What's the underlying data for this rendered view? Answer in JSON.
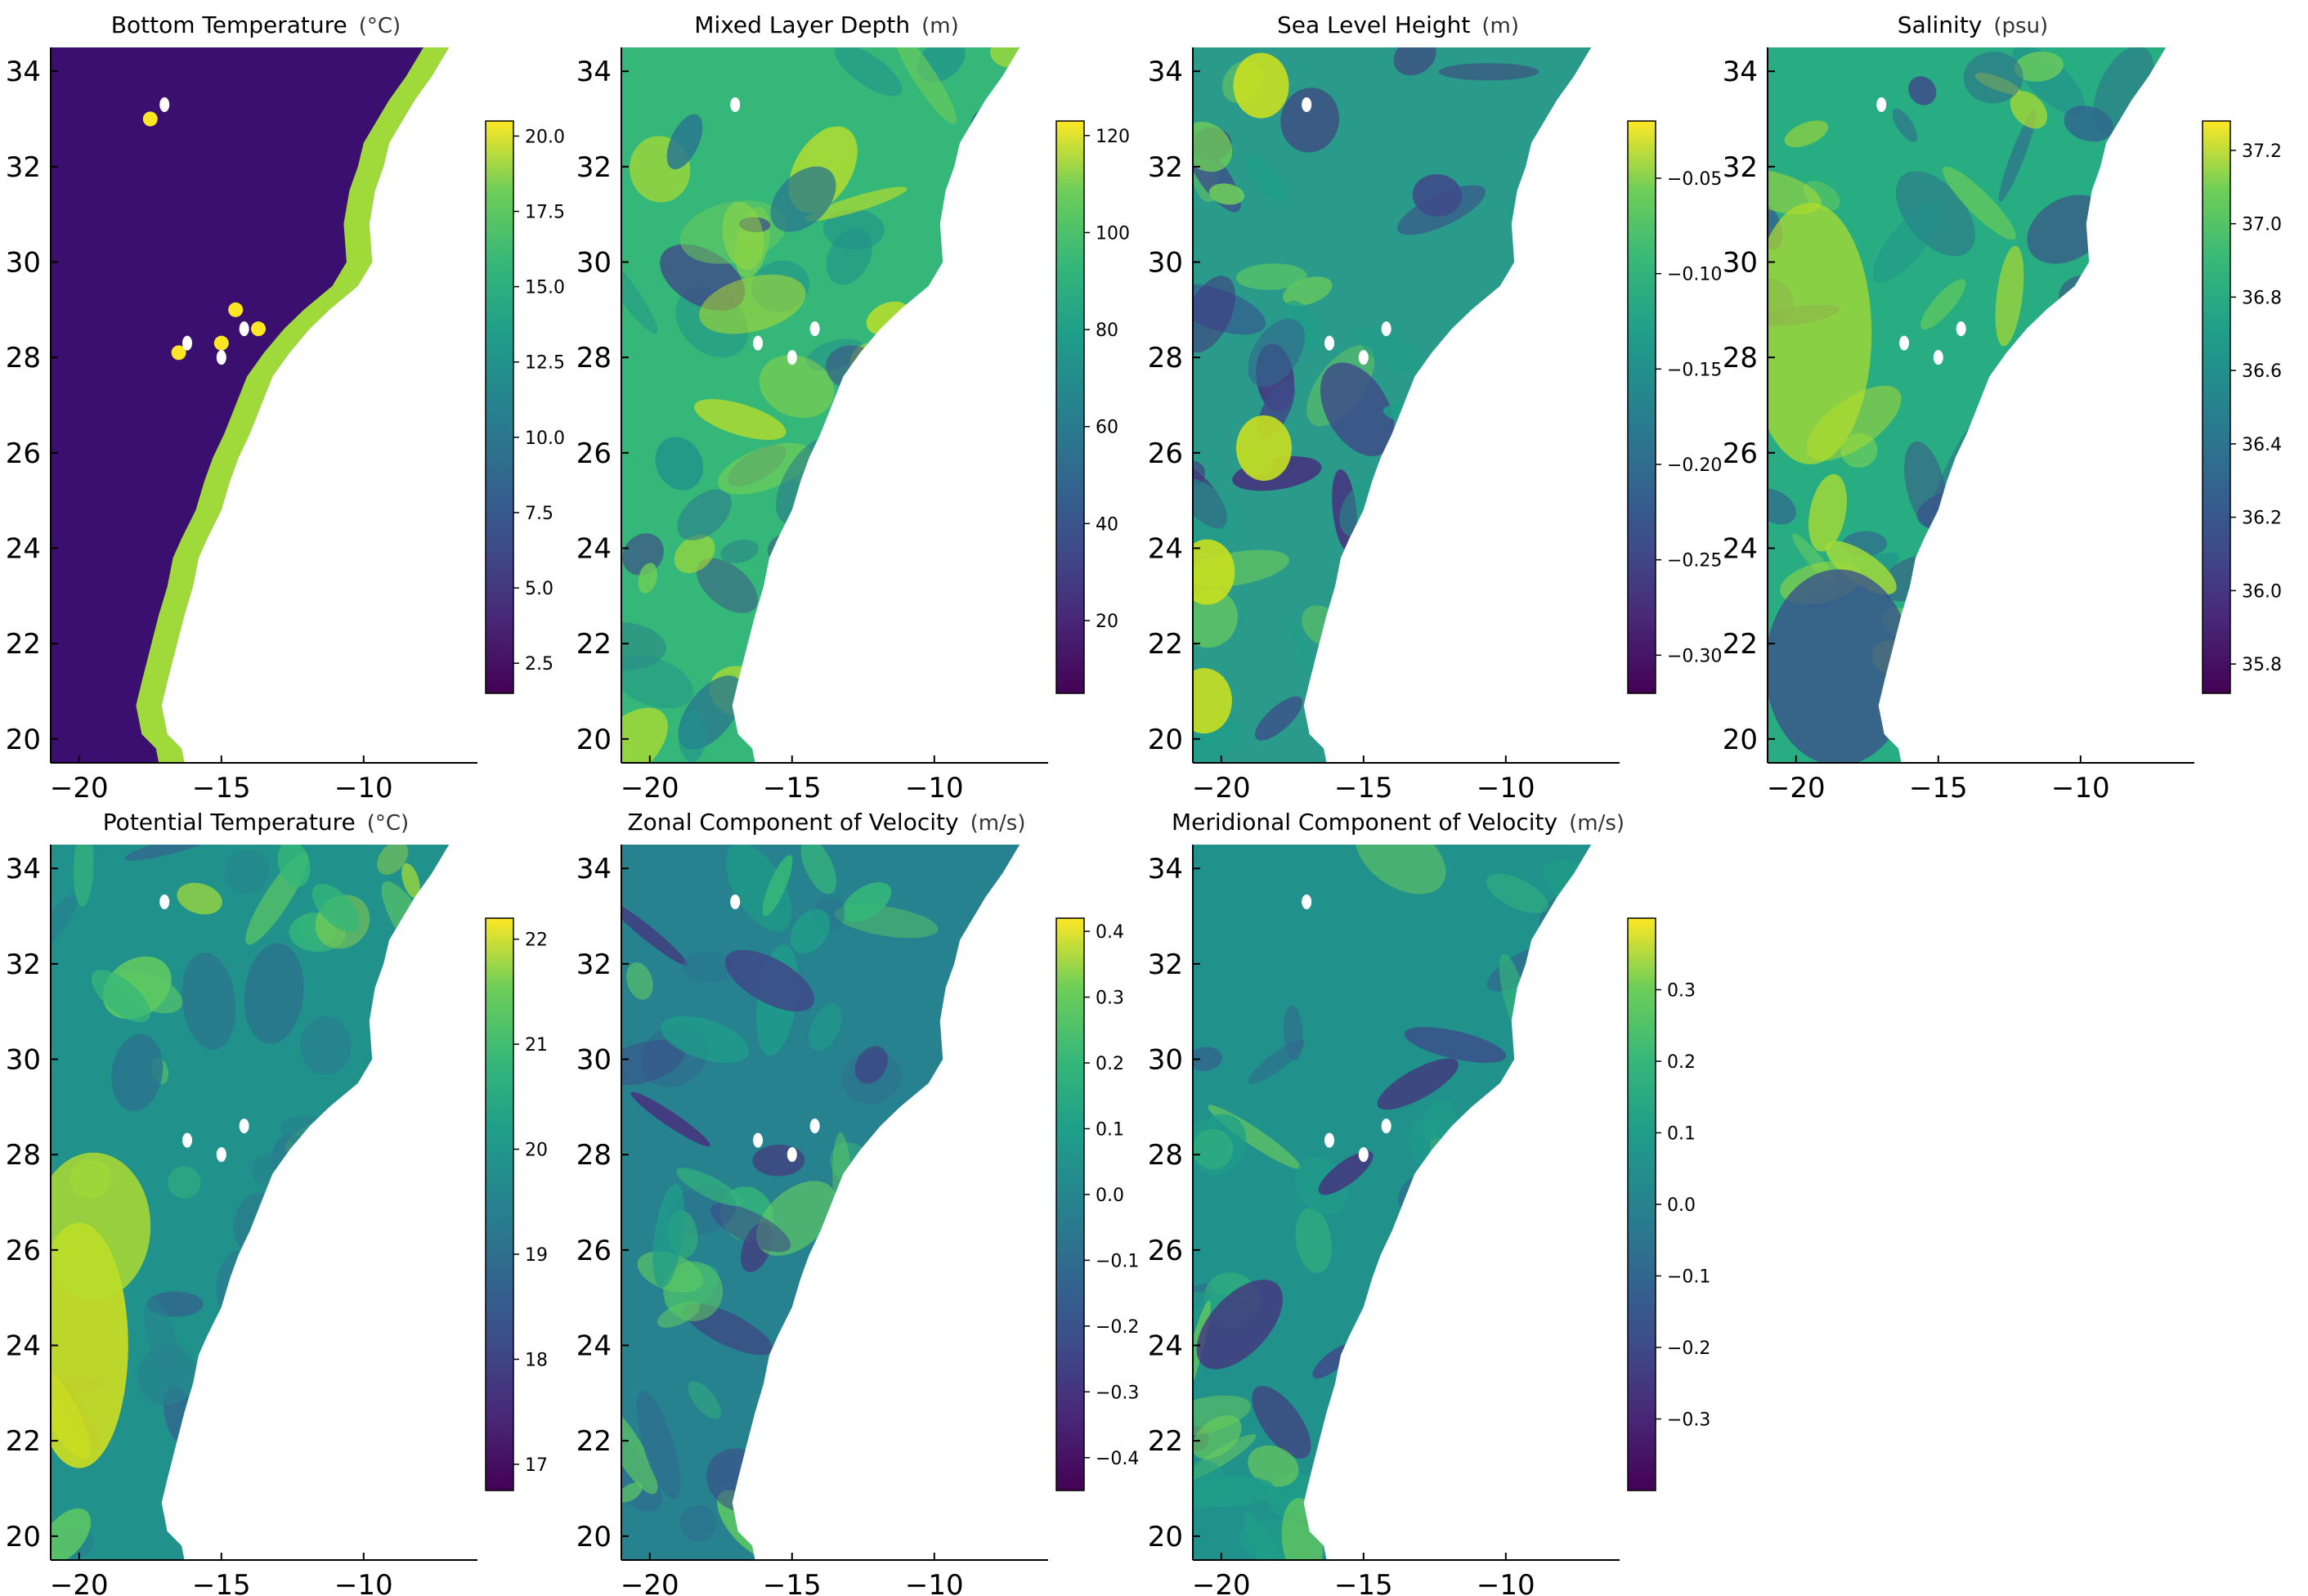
{
  "figure": {
    "colors": {
      "land": "#ffffff",
      "axis": "#000000",
      "ocean_low": "#440154",
      "ocean_mid": "#21918c",
      "ocean_high": "#fde725"
    },
    "colormap": "viridis"
  },
  "chart_data": [
    {
      "type": "heatmap",
      "title": "Bottom Temperature",
      "unit": "(°C)",
      "xlim": [
        -21,
        -6
      ],
      "ylim": [
        19.5,
        34.5
      ],
      "xticks": [
        "−20",
        "−15",
        "−10"
      ],
      "yticks": [
        "20",
        "22",
        "24",
        "26",
        "28",
        "30",
        "32",
        "34"
      ],
      "colorbar": {
        "range": [
          1.5,
          20.5
        ],
        "ticks": [
          "2.5",
          "5.0",
          "7.5",
          "10.0",
          "12.5",
          "15.0",
          "17.5",
          "20.0"
        ],
        "tick_values": [
          2.5,
          5.0,
          7.5,
          10.0,
          12.5,
          15.0,
          17.5,
          20.0
        ]
      }
    },
    {
      "type": "heatmap",
      "title": "Mixed Layer Depth",
      "unit": "(m)",
      "xlim": [
        -21,
        -6
      ],
      "ylim": [
        19.5,
        34.5
      ],
      "xticks": [
        "−20",
        "−15",
        "−10"
      ],
      "yticks": [
        "20",
        "22",
        "24",
        "26",
        "28",
        "30",
        "32",
        "34"
      ],
      "colorbar": {
        "range": [
          5,
          123
        ],
        "ticks": [
          "20",
          "40",
          "60",
          "80",
          "100",
          "120"
        ],
        "tick_values": [
          20,
          40,
          60,
          80,
          100,
          120
        ]
      }
    },
    {
      "type": "heatmap",
      "title": "Sea Level Height",
      "unit": "(m)",
      "xlim": [
        -21,
        -6
      ],
      "ylim": [
        19.5,
        34.5
      ],
      "xticks": [
        "−20",
        "−15",
        "−10"
      ],
      "yticks": [
        "20",
        "22",
        "24",
        "26",
        "28",
        "30",
        "32",
        "34"
      ],
      "colorbar": {
        "range": [
          -0.32,
          -0.02
        ],
        "ticks": [
          "−0.05",
          "−0.10",
          "−0.15",
          "−0.20",
          "−0.25",
          "−0.30"
        ],
        "tick_values": [
          -0.05,
          -0.1,
          -0.15,
          -0.2,
          -0.25,
          -0.3
        ]
      }
    },
    {
      "type": "heatmap",
      "title": "Salinity",
      "unit": "(psu)",
      "xlim": [
        -21,
        -6
      ],
      "ylim": [
        19.5,
        34.5
      ],
      "xticks": [
        "−20",
        "−15",
        "−10"
      ],
      "yticks": [
        "20",
        "22",
        "24",
        "26",
        "28",
        "30",
        "32",
        "34"
      ],
      "colorbar": {
        "range": [
          35.72,
          37.28
        ],
        "ticks": [
          "35.8",
          "36.0",
          "36.2",
          "36.4",
          "36.6",
          "36.8",
          "37.0",
          "37.2"
        ],
        "tick_values": [
          35.8,
          36.0,
          36.2,
          36.4,
          36.6,
          36.8,
          37.0,
          37.2
        ]
      }
    },
    {
      "type": "heatmap",
      "title": "Potential Temperature",
      "unit": "(°C)",
      "xlim": [
        -21,
        -6
      ],
      "ylim": [
        19.5,
        34.5
      ],
      "xticks": [
        "−20",
        "−15",
        "−10"
      ],
      "yticks": [
        "20",
        "22",
        "24",
        "26",
        "28",
        "30",
        "32",
        "34"
      ],
      "colorbar": {
        "range": [
          16.75,
          22.2
        ],
        "ticks": [
          "17",
          "18",
          "19",
          "20",
          "21",
          "22"
        ],
        "tick_values": [
          17,
          18,
          19,
          20,
          21,
          22
        ]
      }
    },
    {
      "type": "heatmap",
      "title": "Zonal Component of Velocity",
      "unit": "(m/s)",
      "xlim": [
        -21,
        -6
      ],
      "ylim": [
        19.5,
        34.5
      ],
      "xticks": [
        "−20",
        "−15",
        "−10"
      ],
      "yticks": [
        "20",
        "22",
        "24",
        "26",
        "28",
        "30",
        "32",
        "34"
      ],
      "colorbar": {
        "range": [
          -0.45,
          0.42
        ],
        "ticks": [
          "0.4",
          "0.3",
          "0.2",
          "0.1",
          "0.0",
          "−0.1",
          "−0.2",
          "−0.3",
          "−0.4"
        ],
        "tick_values": [
          0.4,
          0.3,
          0.2,
          0.1,
          0.0,
          -0.1,
          -0.2,
          -0.3,
          -0.4
        ]
      }
    },
    {
      "type": "heatmap",
      "title": "Meridional Component of Velocity",
      "unit": "(m/s)",
      "xlim": [
        -21,
        -6
      ],
      "ylim": [
        19.5,
        34.5
      ],
      "xticks": [
        "−20",
        "−15",
        "−10"
      ],
      "yticks": [
        "20",
        "22",
        "24",
        "26",
        "28",
        "30",
        "32",
        "34"
      ],
      "colorbar": {
        "range": [
          -0.4,
          0.4
        ],
        "ticks": [
          "0.3",
          "0.2",
          "0.1",
          "0.0",
          "−0.1",
          "−0.2",
          "−0.3"
        ],
        "tick_values": [
          0.3,
          0.2,
          0.1,
          0.0,
          -0.1,
          -0.2,
          -0.3
        ]
      }
    }
  ]
}
